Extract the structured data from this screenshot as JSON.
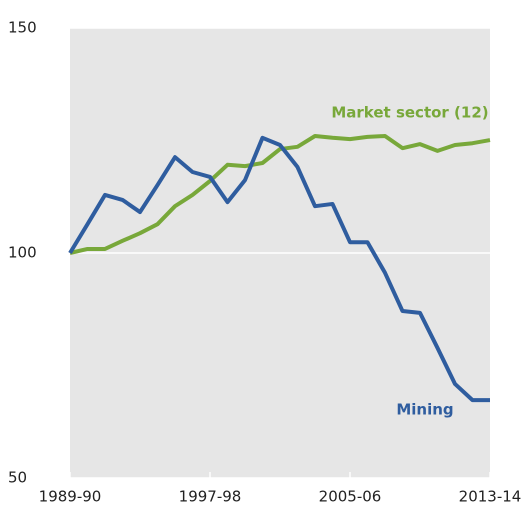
{
  "chart_data": {
    "type": "line",
    "categories": [
      "1989-90",
      null,
      null,
      null,
      null,
      null,
      null,
      null,
      "1997-98",
      null,
      null,
      null,
      null,
      null,
      null,
      null,
      "2005-06",
      null,
      null,
      null,
      null,
      null,
      null,
      null,
      "2013-14"
    ],
    "series": [
      {
        "name": "Market sector (12)",
        "color": "#78a83a",
        "values": [
          100,
          100.9,
          100.9,
          102.7,
          104.4,
          106.4,
          110.4,
          112.9,
          116,
          119.6,
          119.3,
          120,
          123.1,
          123.6,
          126,
          125.6,
          125.3,
          125.8,
          126,
          123.3,
          124.2,
          122.7,
          124,
          124.4,
          125.1
        ]
      },
      {
        "name": "Mining",
        "color": "#2f5d9f",
        "values": [
          100,
          106.4,
          112.9,
          111.8,
          109.1,
          115.1,
          121.3,
          118,
          116.9,
          111.3,
          116.2,
          125.6,
          124,
          119.1,
          110.4,
          110.9,
          102.4,
          102.4,
          95.6,
          87.1,
          86.7,
          78.9,
          70.9,
          67.3,
          67.3
        ]
      }
    ],
    "ylim": [
      50,
      150
    ],
    "yticks": [
      50,
      100,
      150
    ],
    "grid": true
  }
}
